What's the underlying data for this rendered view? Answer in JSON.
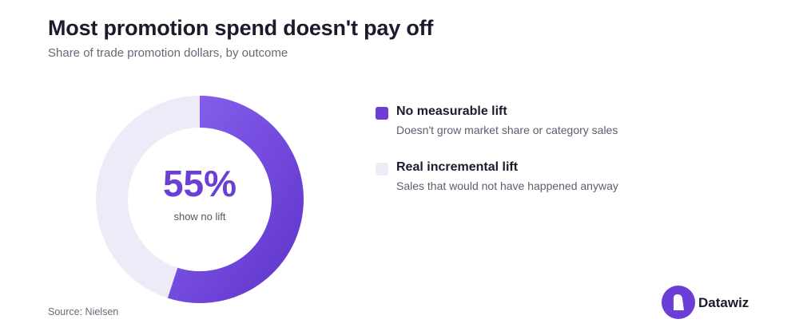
{
  "header": {
    "title": "Most promotion spend doesn't pay off",
    "subtitle": "Share of trade promotion dollars, by outcome"
  },
  "center": {
    "value": "55%",
    "label": "show no lift"
  },
  "legend": [
    {
      "label": "No measurable lift",
      "description": "Doesn't grow market share or category sales",
      "color": "#6b3fd6"
    },
    {
      "label": "Real incremental lift",
      "description": "Sales that would not have happened anyway",
      "color": "#eeebf9"
    }
  ],
  "source": "Source: Nielsen",
  "brand": {
    "name": "Datawiz",
    "logo_icon": "datawiz-logo-icon",
    "color": "#6b3fd6"
  },
  "chart_data": {
    "type": "pie",
    "variant": "donut",
    "title": "Most promotion spend doesn't pay off",
    "subtitle": "Share of trade promotion dollars, by outcome",
    "categories": [
      "No measurable lift",
      "Real incremental lift"
    ],
    "values": [
      55,
      45
    ],
    "unit": "%",
    "colors": [
      "#6b3fd6",
      "#eeebf9"
    ],
    "legend_position": "right"
  }
}
